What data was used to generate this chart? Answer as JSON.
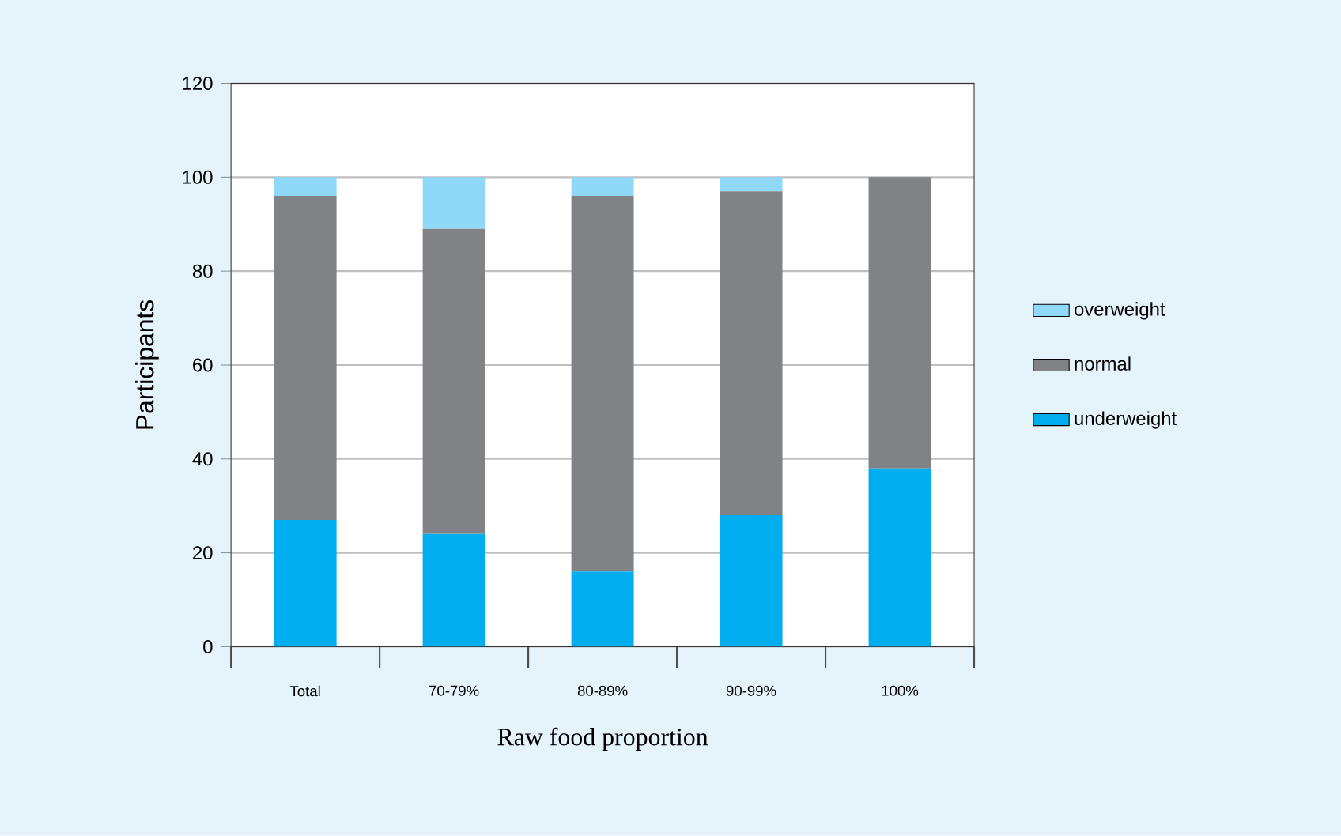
{
  "chart_data": {
    "type": "bar",
    "stacked": true,
    "xlabel": "Raw food proportion",
    "ylabel": "Participants",
    "categories": [
      "Total",
      "70-79%",
      "80-89%",
      "90-99%",
      "100%"
    ],
    "series": [
      {
        "name": "underweight",
        "color": "#00aeef",
        "values": [
          27,
          24,
          16,
          28,
          38
        ]
      },
      {
        "name": "normal",
        "color": "#818285",
        "values": [
          69,
          65,
          80,
          69,
          62
        ]
      },
      {
        "name": "overweight",
        "color": "#8fd8f8",
        "values": [
          4,
          11,
          4,
          3,
          0
        ]
      }
    ],
    "ylim": [
      0,
      120
    ],
    "yticks": [
      0,
      20,
      40,
      60,
      80,
      100,
      120
    ],
    "grid": "y",
    "legend": "right"
  }
}
